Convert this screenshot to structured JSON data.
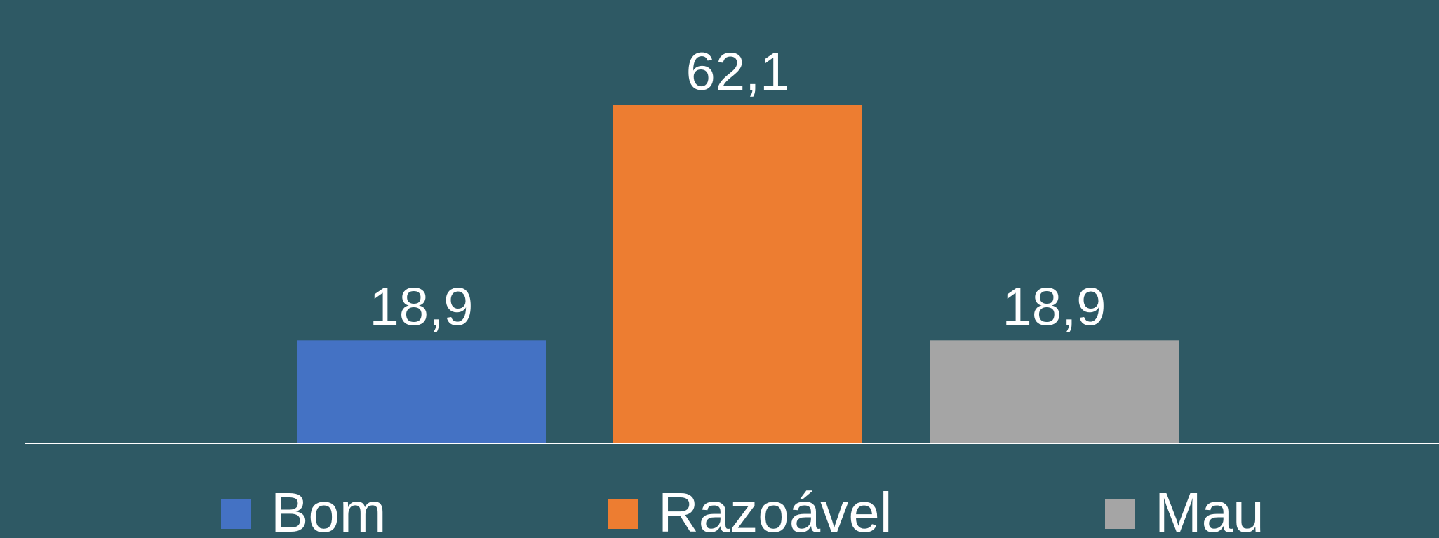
{
  "chart_data": {
    "type": "bar",
    "series": [
      {
        "name": "Bom",
        "color": "#4472c4",
        "values": [
          18.9
        ],
        "value_labels": [
          "18,9"
        ]
      },
      {
        "name": "Razoável",
        "color": "#ed7d31",
        "values": [
          62.1
        ],
        "value_labels": [
          "62,1"
        ]
      },
      {
        "name": "Mau",
        "color": "#a5a5a5",
        "values": [
          18.9
        ],
        "value_labels": [
          "18,9"
        ]
      }
    ]
  }
}
